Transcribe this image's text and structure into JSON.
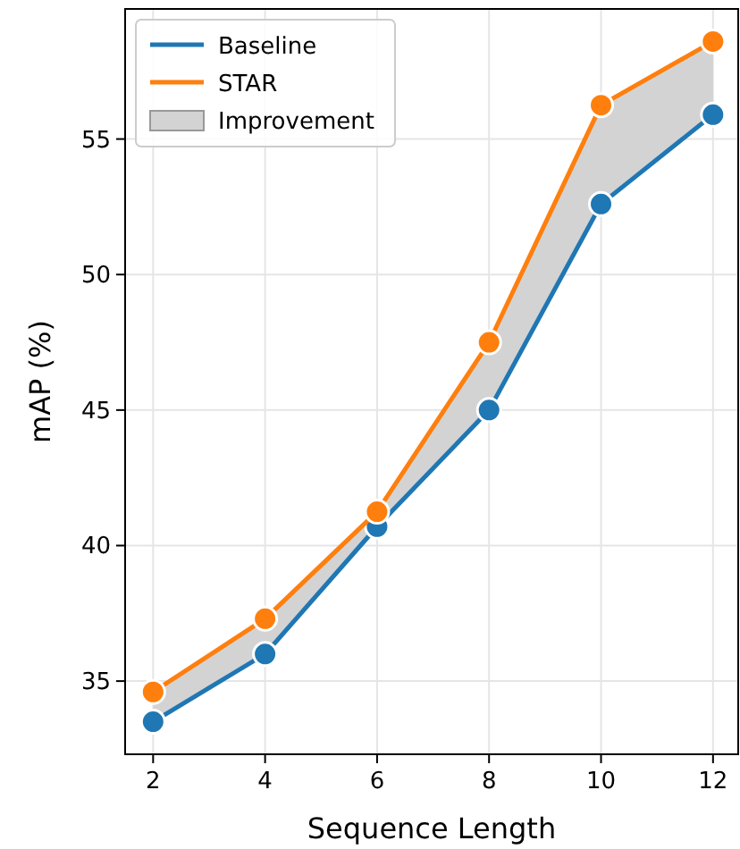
{
  "chart_data": {
    "type": "line",
    "xlabel": "Sequence Length",
    "ylabel": "mAP (%)",
    "x": [
      2,
      4,
      6,
      8,
      10,
      12
    ],
    "series": [
      {
        "name": "Improvement",
        "type": "area",
        "color": "#d3d3d3",
        "values": [
          null,
          null,
          null,
          null,
          null,
          null
        ],
        "lower": [
          33.5,
          36.0,
          40.7,
          45.0,
          52.6,
          55.9
        ],
        "upper": [
          34.6,
          37.3,
          41.25,
          47.5,
          56.25,
          58.6
        ]
      },
      {
        "name": "Baseline",
        "color": "#1f77b4",
        "values": [
          33.5,
          36.0,
          40.7,
          45.0,
          52.6,
          55.9
        ]
      },
      {
        "name": "STAR",
        "color": "#ff7f0e",
        "values": [
          34.6,
          37.3,
          41.25,
          47.5,
          56.25,
          58.6
        ]
      }
    ],
    "xlim": [
      1.5,
      12.45
    ],
    "ylim": [
      32.3,
      59.8
    ],
    "xticks": [
      2,
      4,
      6,
      8,
      10,
      12
    ],
    "yticks": [
      35,
      40,
      45,
      50,
      55
    ],
    "grid": true,
    "legend": "top left",
    "marker": "circle",
    "line_style": "solid"
  }
}
